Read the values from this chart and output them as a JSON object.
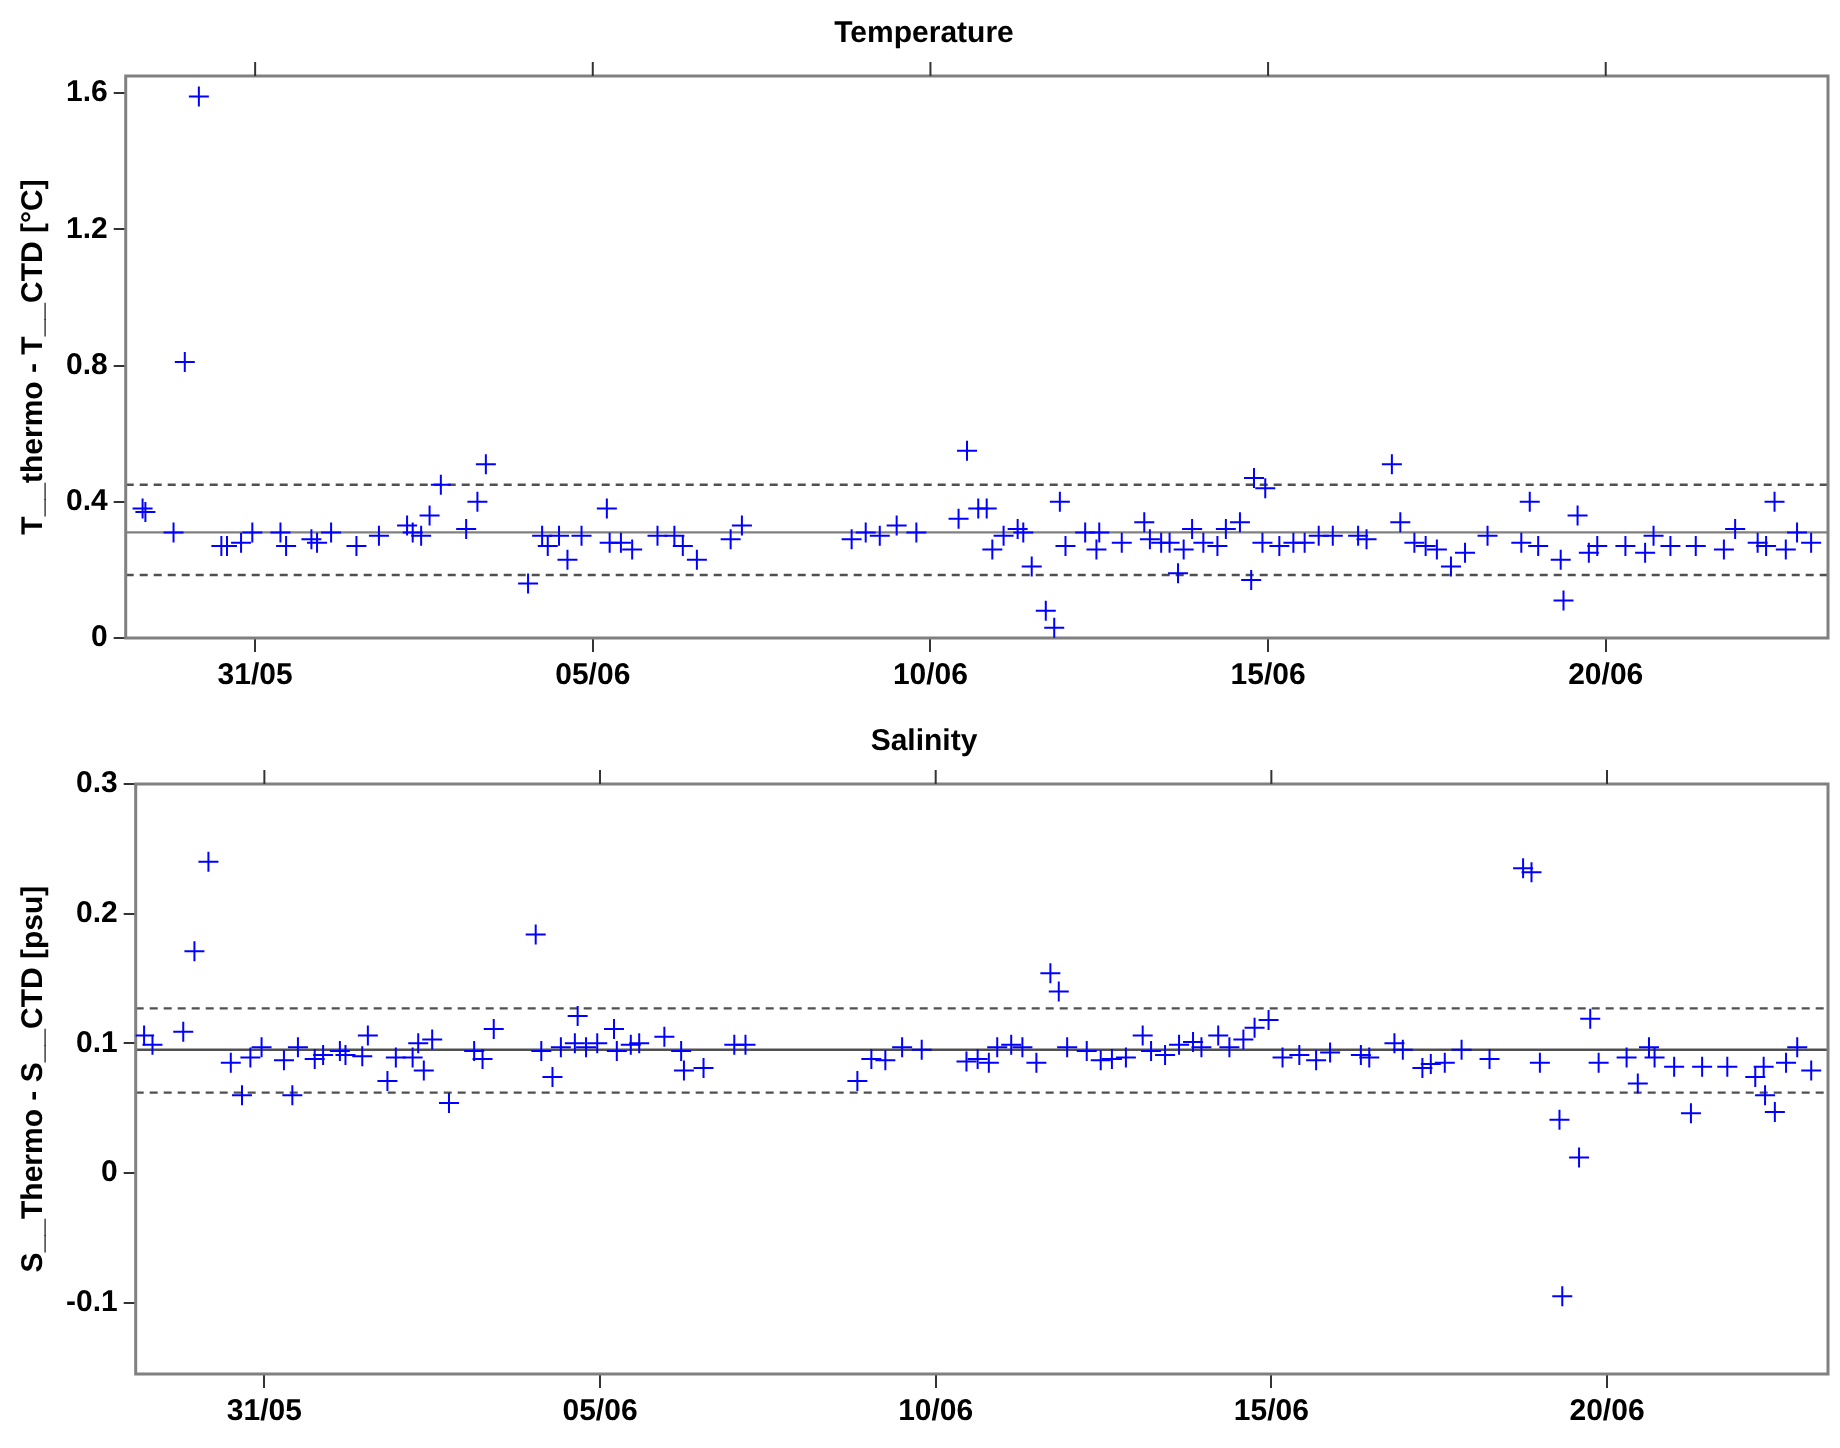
{
  "chart_data": [
    {
      "type": "scatter",
      "title": "Temperature",
      "ylabel": "T__thermo - T__CTD [°C]",
      "marker": "cross",
      "xlim": [
        "--05-29T02:00",
        "--06-23T07:00"
      ],
      "xticks": [
        {
          "value": "--05-31",
          "label": "31/05"
        },
        {
          "value": "--06-05",
          "label": "05/06"
        },
        {
          "value": "--06-10",
          "label": "10/06"
        },
        {
          "value": "--06-15",
          "label": "15/06"
        },
        {
          "value": "--06-20",
          "label": "20/06"
        }
      ],
      "ylim": [
        0,
        1.65
      ],
      "yticks": [
        0,
        0.4,
        0.8,
        1.2,
        1.6
      ],
      "ref_lines": [
        {
          "axis": "y",
          "value": 0.31,
          "color": "#808080",
          "line_style": "solid"
        },
        {
          "axis": "y",
          "value": 0.45,
          "color": "#505050",
          "line_style": "dashed"
        },
        {
          "axis": "y",
          "value": 0.185,
          "color": "#505050",
          "line_style": "dashed"
        }
      ],
      "series": [
        {
          "color": "#0000ff",
          "x": [
            "--05-29T08:00",
            "--05-29T09:00",
            "--05-29T19:00",
            "--05-29T23:00",
            "--05-30T04:00",
            "--05-30T12:00",
            "--05-30T14:00",
            "--05-30T19:00",
            "--05-30T23:00",
            "--05-31T09:00",
            "--05-31T11:00",
            "--05-31T20:00",
            "--05-31T22:00",
            "--06-01T03:00",
            "--06-01T12:00",
            "--06-01T20:00",
            "--06-02T06:00",
            "--06-02T08:00",
            "--06-02T11:00",
            "--06-02T14:00",
            "--06-02T18:00",
            "--06-03T03:00",
            "--06-03T07:00",
            "--06-03T10:00",
            "--06-04T01:00",
            "--06-04T06:00",
            "--06-04T08:00",
            "--06-04T12:00",
            "--06-04T15:00",
            "--06-04T20:00",
            "--06-05T05:00",
            "--06-05T06:00",
            "--06-05T10:00",
            "--06-05T14:00",
            "--06-05T23:00",
            "--06-06T05:00",
            "--06-06T08:00",
            "--06-06T13:00",
            "--06-07T01:00",
            "--06-07T05:00",
            "--06-08T20:00",
            "--06-09T01:00",
            "--06-09T06:00",
            "--06-09T12:00",
            "--06-09T19:00",
            "--06-10T10:00",
            "--06-10T13:00",
            "--06-10T17:00",
            "--06-10T20:00",
            "--06-10T22:00",
            "--06-11T02:00",
            "--06-11T07:00",
            "--06-11T09:00",
            "--06-11T12:00",
            "--06-11T17:00",
            "--06-11T20:00",
            "--06-11T22:00",
            "--06-12T00:00",
            "--06-12T07:00",
            "--06-12T11:00",
            "--06-12T12:00",
            "--06-12T20:00",
            "--06-13T04:00",
            "--06-13T06:00",
            "--06-13T10:00",
            "--06-13T13:00",
            "--06-13T16:00",
            "--06-13T18:00",
            "--06-13T21:00",
            "--06-14T01:00",
            "--06-14T06:00",
            "--06-14T09:00",
            "--06-14T14:00",
            "--06-14T18:00",
            "--06-14T19:00",
            "--06-14T23:00",
            "--06-14T22:00",
            "--06-15T04:00",
            "--06-15T09:00",
            "--06-15T13:00",
            "--06-15T18:00",
            "--06-15T23:00",
            "--06-16T08:00",
            "--06-16T11:00",
            "--06-16T20:00",
            "--06-16T23:00",
            "--06-17T04:00",
            "--06-17T08:00",
            "--06-17T12:00",
            "--06-17T17:00",
            "--06-17T22:00",
            "--06-18T06:00",
            "--06-18T18:00",
            "--06-18T21:00",
            "--06-19T00:00",
            "--06-19T08:00",
            "--06-19T09:00",
            "--06-19T14:00",
            "--06-19T18:00",
            "--06-19T21:00",
            "--06-20T07:00",
            "--06-20T14:00",
            "--06-20T17:00",
            "--06-20T23:00",
            "--06-21T08:00",
            "--06-21T18:00",
            "--06-21T22:00",
            "--06-22T06:00",
            "--06-22T09:00",
            "--06-22T12:00",
            "--06-22T16:00",
            "--06-22T20:00",
            "--06-23T01:00"
          ],
          "values": [
            0.38,
            0.37,
            0.31,
            0.81,
            1.59,
            0.27,
            0.27,
            0.28,
            0.31,
            0.31,
            0.27,
            0.29,
            0.28,
            0.31,
            0.27,
            0.3,
            0.33,
            0.31,
            0.3,
            0.36,
            0.45,
            0.32,
            0.4,
            0.51,
            0.16,
            0.3,
            0.27,
            0.3,
            0.23,
            0.3,
            0.38,
            0.28,
            0.28,
            0.26,
            0.3,
            0.3,
            0.27,
            0.23,
            0.29,
            0.33,
            0.29,
            0.31,
            0.3,
            0.33,
            0.31,
            0.35,
            0.55,
            0.38,
            0.38,
            0.26,
            0.3,
            0.32,
            0.31,
            0.21,
            0.08,
            0.03,
            0.4,
            0.27,
            0.31,
            0.26,
            0.31,
            0.28,
            0.34,
            0.29,
            0.28,
            0.28,
            0.19,
            0.26,
            0.32,
            0.28,
            0.27,
            0.32,
            0.34,
            0.17,
            0.47,
            0.44,
            0.28,
            0.27,
            0.28,
            0.28,
            0.3,
            0.3,
            0.3,
            0.29,
            0.51,
            0.34,
            0.28,
            0.27,
            0.26,
            0.21,
            0.25,
            0.3,
            0.28,
            0.4,
            0.27,
            0.23,
            0.11,
            0.36,
            0.25,
            0.27,
            0.27,
            0.25,
            0.3,
            0.27,
            0.27,
            0.26,
            0.32,
            0.28,
            0.27,
            0.4,
            0.26,
            0.31,
            0.28
          ]
        }
      ]
    },
    {
      "type": "scatter",
      "title": "Salinity",
      "ylabel": "S__Thermo - S__CTD [psu]",
      "marker": "cross",
      "xlim": [
        "--05-29T02:00",
        "--06-23T07:00"
      ],
      "xticks": [
        {
          "value": "--05-31",
          "label": "31/05"
        },
        {
          "value": "--06-05",
          "label": "05/06"
        },
        {
          "value": "--06-10",
          "label": "10/06"
        },
        {
          "value": "--06-15",
          "label": "15/06"
        },
        {
          "value": "--06-20",
          "label": "20/06"
        }
      ],
      "ylim": [
        -0.155,
        0.3
      ],
      "yticks": [
        -0.1,
        0,
        0.1,
        0.2,
        0.3
      ],
      "ref_lines": [
        {
          "axis": "y",
          "value": 0.095,
          "color": "#505050",
          "line_style": "solid"
        },
        {
          "axis": "y",
          "value": 0.127,
          "color": "#505050",
          "line_style": "dashed"
        },
        {
          "axis": "y",
          "value": 0.062,
          "color": "#505050",
          "line_style": "dashed"
        }
      ],
      "series": [
        {
          "color": "#0000ff",
          "x": [
            "--05-29T05:00",
            "--05-29T08:00",
            "--05-29T19:00",
            "--05-29T23:00",
            "--05-30T04:00",
            "--05-30T12:00",
            "--05-30T16:00",
            "--05-30T19:00",
            "--05-30T23:00",
            "--05-31T07:00",
            "--05-31T10:00",
            "--05-31T12:00",
            "--05-31T18:00",
            "--05-31T21:00",
            "--06-01T03:00",
            "--06-01T05:00",
            "--06-01T11:00",
            "--06-01T13:00",
            "--06-01T20:00",
            "--06-01T23:00",
            "--06-02T05:00",
            "--06-02T07:00",
            "--06-02T09:00",
            "--06-02T12:00",
            "--06-02T18:00",
            "--06-03T03:00",
            "--06-03T06:00",
            "--06-03T10:00",
            "--06-04T01:00",
            "--06-04T03:00",
            "--06-04T07:00",
            "--06-04T10:00",
            "--06-04T16:00",
            "--06-04T15:00",
            "--06-04T19:00",
            "--06-04T23:00",
            "--06-05T05:00",
            "--06-05T06:00",
            "--06-05T11:00",
            "--06-05T14:00",
            "--06-05T23:00",
            "--06-06T05:00",
            "--06-06T06:00",
            "--06-06T13:00",
            "--06-07T00:00",
            "--06-07T04:00",
            "--06-08T20:00",
            "--06-09T01:00",
            "--06-09T06:00",
            "--06-09T12:00",
            "--06-09T19:00",
            "--06-10T11:00",
            "--06-10T15:00",
            "--06-10T19:00",
            "--06-10T22:00",
            "--06-11T03:00",
            "--06-11T07:00",
            "--06-11T12:00",
            "--06-11T17:00",
            "--06-11T20:00",
            "--06-11T23:00",
            "--06-12T06:00",
            "--06-12T11:00",
            "--06-12T15:00",
            "--06-12T20:00",
            "--06-13T02:00",
            "--06-13T05:00",
            "--06-13T10:00",
            "--06-13T15:00",
            "--06-13T20:00",
            "--06-13T23:00",
            "--06-14T05:00",
            "--06-14T09:00",
            "--06-14T14:00",
            "--06-14T18:00",
            "--06-14T23:00",
            "--06-15T04:00",
            "--06-15T10:00",
            "--06-15T16:00",
            "--06-15T21:00",
            "--06-16T08:00",
            "--06-16T11:00",
            "--06-16T20:00",
            "--06-16T23:00",
            "--06-17T06:00",
            "--06-17T09:00",
            "--06-17T14:00",
            "--06-17T20:00",
            "--06-18T06:00",
            "--06-18T18:00",
            "--06-18T21:00",
            "--06-19T00:00",
            "--06-19T07:00",
            "--06-19T08:00",
            "--06-19T14:00",
            "--06-19T18:00",
            "--06-19T21:00",
            "--06-20T07:00",
            "--06-20T11:00",
            "--06-20T15:00",
            "--06-20T17:00",
            "--06-21T00:00",
            "--06-21T06:00",
            "--06-21T10:00",
            "--06-21T19:00",
            "--06-22T05:00",
            "--06-22T08:00",
            "--06-22T08:30",
            "--06-22T12:00",
            "--06-22T16:00",
            "--06-22T20:00",
            "--06-23T01:00"
          ],
          "values": [
            0.106,
            0.099,
            0.109,
            0.171,
            0.24,
            0.085,
            0.06,
            0.089,
            0.097,
            0.087,
            0.06,
            0.097,
            0.088,
            0.091,
            0.094,
            0.091,
            0.09,
            0.106,
            0.071,
            0.089,
            0.089,
            0.1,
            0.079,
            0.103,
            0.054,
            0.094,
            0.088,
            0.111,
            0.184,
            0.094,
            0.074,
            0.097,
            0.121,
            0.1,
            0.097,
            0.1,
            0.111,
            0.094,
            0.099,
            0.1,
            0.105,
            0.094,
            0.079,
            0.081,
            0.099,
            0.099,
            0.071,
            0.088,
            0.087,
            0.097,
            0.095,
            0.086,
            0.088,
            0.085,
            0.097,
            0.099,
            0.097,
            0.085,
            0.154,
            0.14,
            0.097,
            0.094,
            0.087,
            0.088,
            0.089,
            0.106,
            0.094,
            0.091,
            0.099,
            0.101,
            0.097,
            0.106,
            0.097,
            0.103,
            0.112,
            0.118,
            0.089,
            0.091,
            0.087,
            0.093,
            0.091,
            0.089,
            0.1,
            0.095,
            0.081,
            0.084,
            0.085,
            0.095,
            0.088,
            0.235,
            0.232,
            0.085,
            0.041,
            -0.095,
            0.012,
            0.119,
            0.085,
            0.089,
            0.069,
            0.097,
            0.089,
            0.082,
            0.046,
            0.082,
            0.082,
            0.074,
            0.082,
            0.06,
            0.047,
            0.085,
            0.097,
            0.079
          ]
        }
      ]
    }
  ]
}
